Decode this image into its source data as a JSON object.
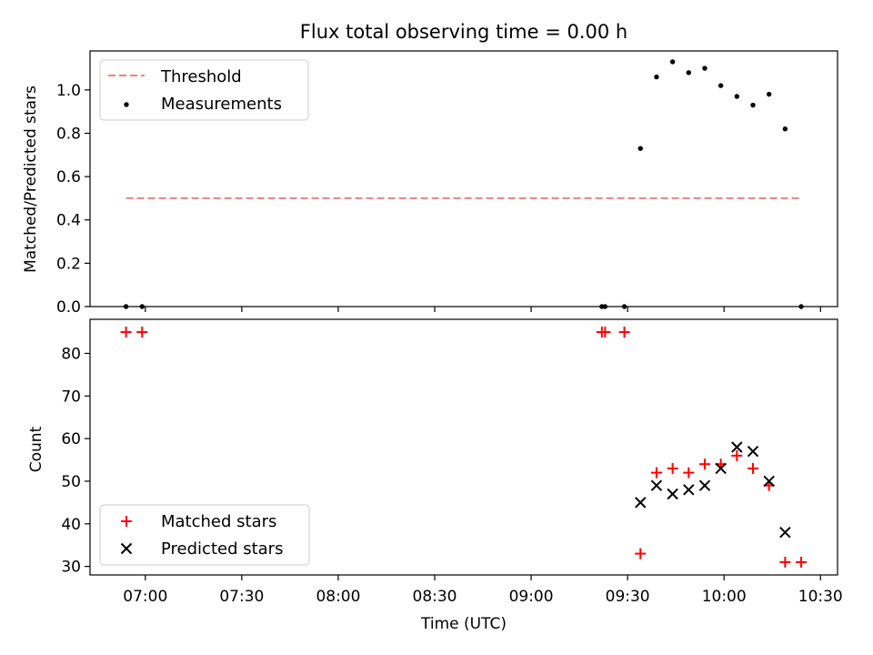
{
  "chart_data": [
    {
      "type": "scatter",
      "title": "Flux total observing time = 0.00 h",
      "xlabel": "",
      "ylabel": "Matched/Predicted stars",
      "ylim": [
        0,
        1.18
      ],
      "yticks": [
        "0.0",
        "0.2",
        "0.4",
        "0.6",
        "0.8",
        "1.0"
      ],
      "legend_position": "top-left",
      "threshold": {
        "name": "Threshold",
        "value": 0.5,
        "color": "#f08080",
        "x_start": "06:54",
        "x_end": "10:24"
      },
      "series": [
        {
          "name": "Measurements",
          "color": "#000000",
          "marker": "dot",
          "points": [
            [
              "06:54",
              0.0
            ],
            [
              "06:59",
              0.0
            ],
            [
              "09:22",
              0.0
            ],
            [
              "09:23",
              0.0
            ],
            [
              "09:29",
              0.0
            ],
            [
              "09:34",
              0.73
            ],
            [
              "09:39",
              1.06
            ],
            [
              "09:44",
              1.13
            ],
            [
              "09:49",
              1.08
            ],
            [
              "09:54",
              1.1
            ],
            [
              "09:59",
              1.02
            ],
            [
              "10:04",
              0.97
            ],
            [
              "10:09",
              0.93
            ],
            [
              "10:14",
              0.98
            ],
            [
              "10:19",
              0.82
            ],
            [
              "10:24",
              0.0
            ]
          ]
        }
      ]
    },
    {
      "type": "scatter",
      "title": "",
      "xlabel": "Time (UTC)",
      "ylabel": "Count",
      "ylim": [
        28,
        88
      ],
      "yticks": [
        "30",
        "40",
        "50",
        "60",
        "70",
        "80"
      ],
      "xticks": [
        "07:00",
        "07:30",
        "08:00",
        "08:30",
        "09:00",
        "09:30",
        "10:00",
        "10:30"
      ],
      "legend_position": "bottom-left",
      "series": [
        {
          "name": "Matched stars",
          "color": "#ff0000",
          "marker": "plus",
          "points": [
            [
              "06:54",
              85
            ],
            [
              "06:59",
              85
            ],
            [
              "09:22",
              85
            ],
            [
              "09:23",
              85
            ],
            [
              "09:29",
              85
            ],
            [
              "09:34",
              33
            ],
            [
              "09:39",
              52
            ],
            [
              "09:44",
              53
            ],
            [
              "09:49",
              52
            ],
            [
              "09:54",
              54
            ],
            [
              "09:59",
              54
            ],
            [
              "10:04",
              56
            ],
            [
              "10:09",
              53
            ],
            [
              "10:14",
              49
            ],
            [
              "10:19",
              31
            ],
            [
              "10:24",
              31
            ]
          ]
        },
        {
          "name": "Predicted stars",
          "color": "#000000",
          "marker": "x",
          "points": [
            [
              "09:34",
              45
            ],
            [
              "09:39",
              49
            ],
            [
              "09:44",
              47
            ],
            [
              "09:49",
              48
            ],
            [
              "09:54",
              49
            ],
            [
              "09:59",
              53
            ],
            [
              "10:04",
              58
            ],
            [
              "10:09",
              57
            ],
            [
              "10:14",
              50
            ],
            [
              "10:19",
              38
            ]
          ]
        }
      ]
    }
  ]
}
